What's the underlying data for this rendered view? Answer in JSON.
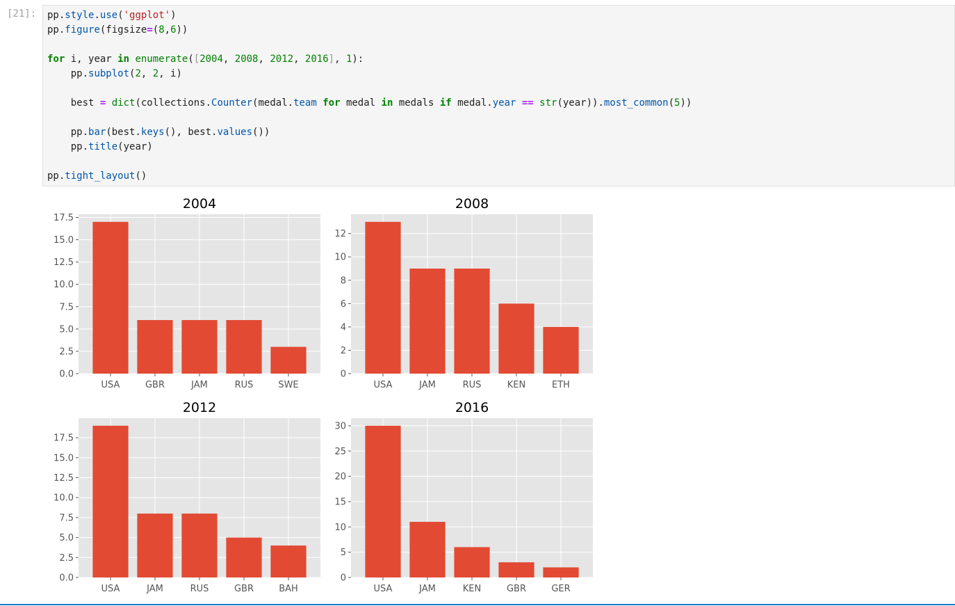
{
  "cell": {
    "prompt": "[21]:",
    "code_lines": [
      [
        [
          "pp.",
          "t"
        ],
        [
          "style",
          "fn"
        ],
        [
          ".",
          "t"
        ],
        [
          "use",
          "fn"
        ],
        [
          "(",
          "t"
        ],
        [
          "'ggplot'",
          "st"
        ],
        [
          ")",
          "t"
        ]
      ],
      [
        [
          "pp.",
          "t"
        ],
        [
          "figure",
          "fn"
        ],
        [
          "(figsize",
          "t"
        ],
        [
          "=",
          "op"
        ],
        [
          "(",
          "t"
        ],
        [
          "8",
          "nm"
        ],
        [
          ",",
          "t"
        ],
        [
          "6",
          "nm"
        ],
        [
          "))",
          "t"
        ]
      ],
      [],
      [
        [
          "for",
          "kw"
        ],
        [
          " i, year ",
          "t"
        ],
        [
          "in",
          "kw"
        ],
        [
          " ",
          "t"
        ],
        [
          "enumerate",
          "bi"
        ],
        [
          "(",
          "t"
        ],
        [
          "[",
          "br"
        ],
        [
          "2004",
          "nm"
        ],
        [
          ", ",
          "t"
        ],
        [
          "2008",
          "nm"
        ],
        [
          ", ",
          "t"
        ],
        [
          "2012",
          "nm"
        ],
        [
          ", ",
          "t"
        ],
        [
          "2016",
          "nm"
        ],
        [
          "]",
          "br"
        ],
        [
          ", ",
          "t"
        ],
        [
          "1",
          "nm"
        ],
        [
          "):",
          "t"
        ]
      ],
      [
        [
          "    pp.",
          "t"
        ],
        [
          "subplot",
          "fn"
        ],
        [
          "(",
          "t"
        ],
        [
          "2",
          "nm"
        ],
        [
          ", ",
          "t"
        ],
        [
          "2",
          "nm"
        ],
        [
          ", i)",
          "t"
        ]
      ],
      [],
      [
        [
          "    best ",
          "t"
        ],
        [
          "=",
          "op"
        ],
        [
          " ",
          "t"
        ],
        [
          "dict",
          "bi"
        ],
        [
          "(collections.",
          "t"
        ],
        [
          "Counter",
          "fn"
        ],
        [
          "(medal.",
          "t"
        ],
        [
          "team",
          "fn"
        ],
        [
          " ",
          "t"
        ],
        [
          "for",
          "kw"
        ],
        [
          " medal ",
          "t"
        ],
        [
          "in",
          "kw"
        ],
        [
          " medals ",
          "t"
        ],
        [
          "if",
          "kw"
        ],
        [
          " medal.",
          "t"
        ],
        [
          "year",
          "fn"
        ],
        [
          " ",
          "t"
        ],
        [
          "==",
          "op"
        ],
        [
          " ",
          "t"
        ],
        [
          "str",
          "bi"
        ],
        [
          "(year)).",
          "t"
        ],
        [
          "most_common",
          "fn"
        ],
        [
          "(",
          "t"
        ],
        [
          "5",
          "nm"
        ],
        [
          "))",
          "t"
        ]
      ],
      [],
      [
        [
          "    pp.",
          "t"
        ],
        [
          "bar",
          "fn"
        ],
        [
          "(best.",
          "t"
        ],
        [
          "keys",
          "fn"
        ],
        [
          "(), best.",
          "t"
        ],
        [
          "values",
          "fn"
        ],
        [
          "())",
          "t"
        ]
      ],
      [
        [
          "    pp.",
          "t"
        ],
        [
          "title",
          "fn"
        ],
        [
          "(year)",
          "t"
        ]
      ],
      [],
      [
        [
          "pp.",
          "t"
        ],
        [
          "tight_layout",
          "fn"
        ],
        [
          "()",
          "t"
        ]
      ]
    ]
  },
  "colors": {
    "bar": "#e24a33",
    "panel_bg": "#e5e5e5",
    "grid": "#ffffff",
    "tick_text": "#555555",
    "title_text": "#000000"
  },
  "chart_data": [
    {
      "type": "bar",
      "title": "2004",
      "categories": [
        "USA",
        "GBR",
        "JAM",
        "RUS",
        "SWE"
      ],
      "values": [
        17,
        6,
        6,
        6,
        3
      ],
      "ylim": [
        0,
        17.85
      ],
      "yticks": [
        0,
        2.5,
        5,
        7.5,
        10,
        12.5,
        15,
        17.5
      ],
      "ytick_labels": [
        "0.0",
        "2.5",
        "5.0",
        "7.5",
        "10.0",
        "12.5",
        "15.0",
        "17.5"
      ],
      "xlabel": "",
      "ylabel": "",
      "grid": true
    },
    {
      "type": "bar",
      "title": "2008",
      "categories": [
        "USA",
        "JAM",
        "RUS",
        "KEN",
        "ETH"
      ],
      "values": [
        13,
        9,
        9,
        6,
        4
      ],
      "ylim": [
        0,
        13.65
      ],
      "yticks": [
        0,
        2,
        4,
        6,
        8,
        10,
        12
      ],
      "ytick_labels": [
        "0",
        "2",
        "4",
        "6",
        "8",
        "10",
        "12"
      ],
      "xlabel": "",
      "ylabel": "",
      "grid": true
    },
    {
      "type": "bar",
      "title": "2012",
      "categories": [
        "USA",
        "JAM",
        "RUS",
        "GBR",
        "BAH"
      ],
      "values": [
        19,
        8,
        8,
        5,
        4
      ],
      "ylim": [
        0,
        19.95
      ],
      "yticks": [
        0,
        2.5,
        5,
        7.5,
        10,
        12.5,
        15,
        17.5
      ],
      "ytick_labels": [
        "0.0",
        "2.5",
        "5.0",
        "7.5",
        "10.0",
        "12.5",
        "15.0",
        "17.5"
      ],
      "xlabel": "",
      "ylabel": "",
      "grid": true
    },
    {
      "type": "bar",
      "title": "2016",
      "categories": [
        "USA",
        "JAM",
        "KEN",
        "GBR",
        "GER"
      ],
      "values": [
        30,
        11,
        6,
        3,
        2
      ],
      "ylim": [
        0,
        31.5
      ],
      "yticks": [
        0,
        5,
        10,
        15,
        20,
        25,
        30
      ],
      "ytick_labels": [
        "0",
        "5",
        "10",
        "15",
        "20",
        "25",
        "30"
      ],
      "xlabel": "",
      "ylabel": "",
      "grid": true
    }
  ]
}
